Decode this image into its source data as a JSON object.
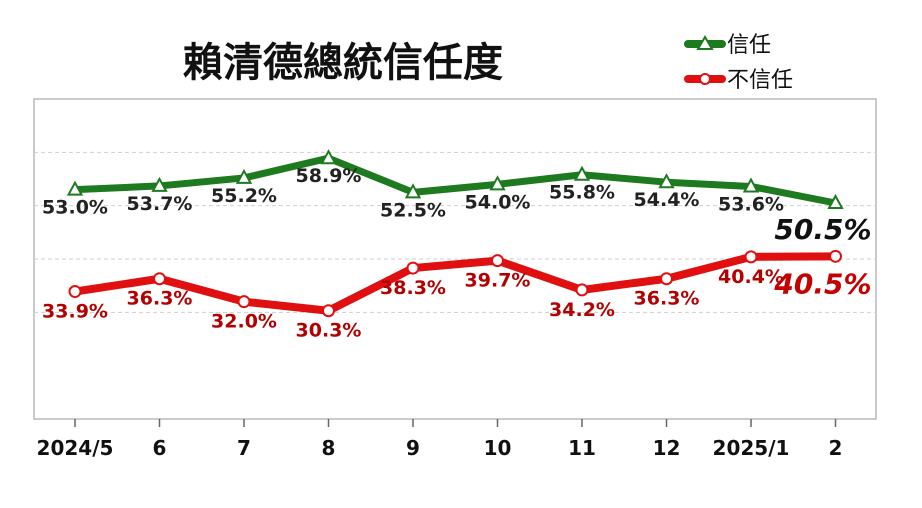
{
  "chart_data": {
    "type": "line",
    "title": "賴清德總統信任度",
    "categories": [
      "2024/5",
      "6",
      "7",
      "8",
      "9",
      "10",
      "11",
      "12",
      "2025/1",
      "2"
    ],
    "series": [
      {
        "name": "信任",
        "values": [
          53.0,
          53.7,
          55.2,
          58.9,
          52.5,
          54.0,
          55.8,
          54.4,
          53.6,
          50.5
        ],
        "labels": [
          "53.0%",
          "53.7%",
          "55.2%",
          "58.9%",
          "52.5%",
          "54.0%",
          "55.8%",
          "54.4%",
          "53.6%",
          "50.5%"
        ],
        "color": "#1e7a1e",
        "marker": "triangle"
      },
      {
        "name": "不信任",
        "values": [
          33.9,
          36.3,
          32.0,
          30.3,
          38.3,
          39.7,
          34.2,
          36.3,
          40.4,
          40.5
        ],
        "labels": [
          "33.9%",
          "36.3%",
          "32.0%",
          "30.3%",
          "38.3%",
          "39.7%",
          "34.2%",
          "36.3%",
          "40.4%",
          "40.5%"
        ],
        "color": "#e01010",
        "marker": "circle"
      }
    ],
    "ylim": [
      10,
      70
    ],
    "grid": true,
    "legend": "top-right"
  }
}
